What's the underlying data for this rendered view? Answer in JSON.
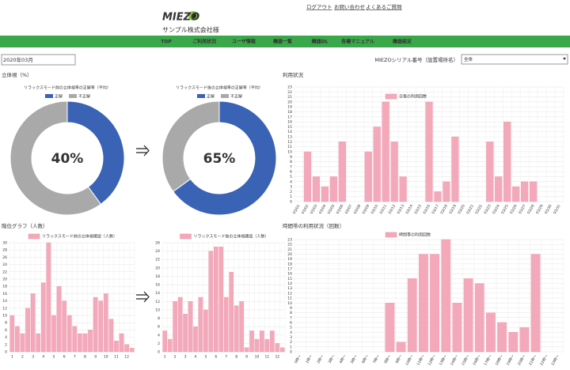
{
  "header": {
    "logo": "MIEZO",
    "company": "サンプル株式会社様",
    "links": [
      "ログアウト",
      "お問い合わせ",
      "よくあるご質問"
    ]
  },
  "nav": [
    "TOP",
    "ご利用状況",
    "ユーザ情報",
    "機器一覧",
    "機器DL",
    "各種マニュアル",
    "機器設定"
  ],
  "filters": {
    "month": "2020年03月",
    "serial_label": "MIEZOシリアル番号（設置場所名）",
    "serial_value": "全体"
  },
  "sections": [
    "立体視（%）",
    "利用状況",
    "階位グラフ（人数）",
    "時間帯の利用状況（回数）"
  ],
  "chart_data": [
    {
      "type": "doughnut",
      "title": "リラックスモード前の立体視率の正解率（平均）",
      "categories": [
        "正解",
        "不正解"
      ],
      "values": [
        40,
        60
      ],
      "colors": [
        "#3a62b5",
        "#a9a9a9"
      ],
      "center_label": "40%"
    },
    {
      "type": "doughnut",
      "title": "リラックスモード後の立体視率の正解率（平均）",
      "categories": [
        "正解",
        "不正解"
      ],
      "values": [
        65,
        35
      ],
      "colors": [
        "#3a62b5",
        "#a9a9a9"
      ],
      "center_label": "65%"
    },
    {
      "type": "bar",
      "categories": [
        "03/01",
        "03/02",
        "03/03",
        "03/04",
        "03/05",
        "03/06",
        "03/07",
        "03/08",
        "03/09",
        "03/10",
        "03/11",
        "03/12",
        "03/13",
        "03/14",
        "03/15",
        "03/16",
        "03/17",
        "03/18",
        "03/19",
        "03/20",
        "03/21",
        "03/22",
        "03/23",
        "03/24",
        "03/25",
        "03/26",
        "03/27",
        "03/28",
        "03/29",
        "03/30",
        "03/31"
      ],
      "series": [
        {
          "name": "日毎の利用回数",
          "color": "#f4a9ba",
          "values": [
            0,
            10,
            5,
            3,
            5,
            12,
            0,
            0,
            10,
            15,
            20,
            12,
            5,
            0,
            0,
            20,
            2,
            4,
            13,
            0,
            0,
            0,
            12,
            5,
            16,
            3,
            4,
            4,
            0,
            0,
            0
          ]
        }
      ],
      "ylim": [
        0,
        23
      ],
      "yticks": [
        0,
        1,
        2,
        3,
        4,
        5,
        6,
        7,
        8,
        9,
        10,
        11,
        12,
        13,
        14,
        15,
        16,
        17,
        18,
        19,
        20,
        21,
        22,
        23
      ],
      "grid": true
    },
    {
      "type": "bar",
      "categories": [
        "1",
        null,
        "2",
        null,
        "3",
        null,
        "4",
        null,
        "5",
        null,
        "6",
        null,
        "7",
        null,
        "8",
        null,
        "9",
        null,
        "10",
        null,
        "11",
        null,
        "12",
        null
      ],
      "series": [
        {
          "name": "リラックスモード前の立体視確認（人数）",
          "color": "#f4a9ba",
          "values": [
            10,
            7,
            5,
            12,
            16,
            5,
            19,
            30,
            10,
            18,
            14,
            10,
            7,
            5,
            5,
            6,
            15,
            14,
            16,
            9,
            3,
            5,
            2,
            1
          ]
        }
      ],
      "ylim": [
        0,
        30
      ],
      "yticks": [
        0,
        2,
        4,
        6,
        8,
        10,
        12,
        14,
        16,
        18,
        20,
        22,
        24,
        26,
        28,
        30
      ],
      "grid": true
    },
    {
      "type": "bar",
      "categories": [
        "1",
        null,
        "2",
        null,
        "3",
        null,
        "4",
        null,
        "5",
        null,
        "6",
        null,
        "7",
        null,
        "8",
        null,
        "9",
        null,
        "10",
        null,
        "11",
        null,
        "12",
        null
      ],
      "series": [
        {
          "name": "リラックスモード後の立体視確認（人数）",
          "color": "#f4a9ba",
          "values": [
            5,
            3,
            12,
            13,
            9,
            12,
            6,
            13,
            10,
            24,
            25,
            25,
            13,
            19,
            11,
            12,
            1,
            5,
            3,
            5,
            3,
            5,
            2,
            1
          ]
        }
      ],
      "ylim": [
        0,
        26
      ],
      "yticks": [
        0,
        2,
        4,
        6,
        8,
        10,
        12,
        14,
        16,
        18,
        20,
        22,
        24,
        26
      ],
      "grid": true
    },
    {
      "type": "bar",
      "categories": [
        "0時〜",
        "1時〜",
        "2時〜",
        "3時〜",
        "4時〜",
        "5時〜",
        "6時〜",
        "7時〜",
        "8時〜",
        "9時〜",
        "10時〜",
        "11時〜",
        "12時〜",
        "13時〜",
        "14時〜",
        "15時〜",
        "16時〜",
        "17時〜",
        "18時〜",
        "19時〜",
        "20時〜",
        "21時〜",
        "22時〜",
        "23時〜"
      ],
      "series": [
        {
          "name": "時間帯の利用回数",
          "color": "#f4a9ba",
          "values": [
            0,
            0,
            0,
            0,
            0,
            0,
            0,
            0,
            10,
            2,
            15,
            20,
            20,
            23,
            10,
            15,
            14,
            8,
            6,
            4,
            5,
            20,
            0,
            0
          ]
        }
      ],
      "ylim": [
        0,
        23
      ],
      "yticks": [
        0,
        1,
        2,
        3,
        4,
        5,
        6,
        7,
        8,
        9,
        10,
        11,
        12,
        13,
        14,
        15,
        16,
        17,
        18,
        19,
        20,
        21,
        22,
        23
      ],
      "grid": true
    }
  ]
}
